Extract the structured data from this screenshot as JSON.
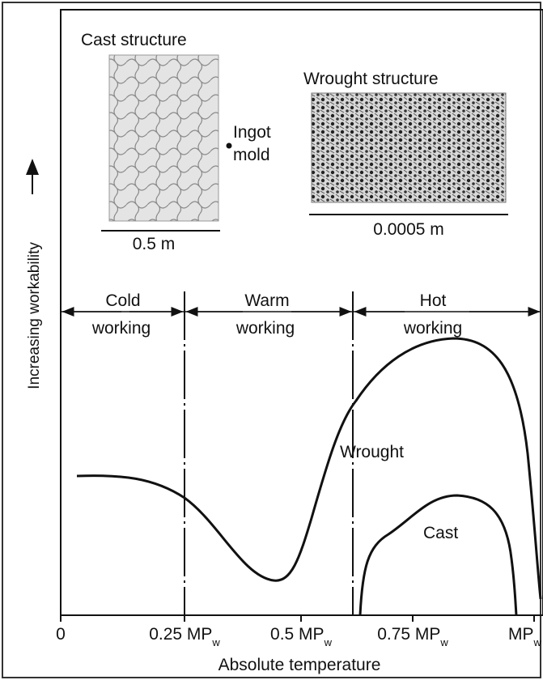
{
  "cast_structure": {
    "title": "Cast structure",
    "annotation": [
      "Ingot",
      "mold"
    ],
    "scale": "0.5 m"
  },
  "wrought_structure": {
    "title": "Wrought structure",
    "scale": "0.0005 m"
  },
  "regions": [
    {
      "line1": "Cold",
      "line2": "working"
    },
    {
      "line1": "Warm",
      "line2": "working"
    },
    {
      "line1": "Hot",
      "line2": "working"
    }
  ],
  "curves": {
    "wrought": "Wrought",
    "cast": "Cast"
  },
  "x_axis": {
    "title": "Absolute temperature",
    "ticks": [
      {
        "text": "0"
      },
      {
        "text": "0.25 MP",
        "sub": "w"
      },
      {
        "text": "0.5 MP",
        "sub": "w"
      },
      {
        "text": "0.75 MP",
        "sub": "w"
      },
      {
        "text": "MP",
        "sub": "w"
      }
    ]
  },
  "y_axis": {
    "title": "Increasing workability"
  }
}
